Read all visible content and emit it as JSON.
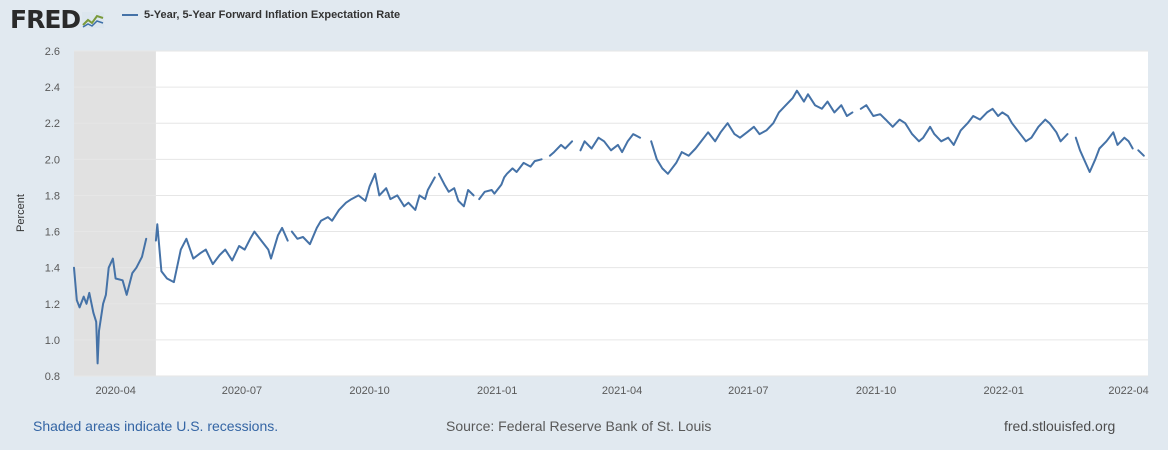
{
  "header": {
    "logo_text": "FRED",
    "legend_label": "5-Year, 5-Year Forward Inflation Expectation Rate",
    "series_color": "#4572a7"
  },
  "footer": {
    "note": "Shaded areas indicate U.S. recessions.",
    "source": "Source: Federal Reserve Bank of St. Louis",
    "site": "fred.stlouisfed.org"
  },
  "chart_data": {
    "type": "line",
    "ylabel": "Percent",
    "ylim": [
      0.8,
      2.6
    ],
    "yticks": [
      "0.8",
      "1.0",
      "1.2",
      "1.4",
      "1.6",
      "1.8",
      "2.0",
      "2.2",
      "2.4",
      "2.6"
    ],
    "xlim": [
      "2020-03-02",
      "2022-04-15"
    ],
    "xticks": [
      {
        "date": "2020-04-01",
        "label": "2020-04"
      },
      {
        "date": "2020-07-01",
        "label": "2020-07"
      },
      {
        "date": "2020-10-01",
        "label": "2020-10"
      },
      {
        "date": "2021-01-01",
        "label": "2021-01"
      },
      {
        "date": "2021-04-01",
        "label": "2021-04"
      },
      {
        "date": "2021-07-01",
        "label": "2021-07"
      },
      {
        "date": "2021-10-01",
        "label": "2021-10"
      },
      {
        "date": "2022-01-01",
        "label": "2022-01"
      },
      {
        "date": "2022-04-01",
        "label": "2022-04"
      }
    ],
    "recession": {
      "start": "2020-03-02",
      "end": "2020-04-30"
    },
    "grid": "horizontal",
    "series": [
      {
        "color": "#4572a7",
        "points": [
          [
            "2020-03-02",
            1.4
          ],
          [
            "2020-03-04",
            1.22
          ],
          [
            "2020-03-06",
            1.18
          ],
          [
            "2020-03-09",
            1.24
          ],
          [
            "2020-03-11",
            1.2
          ],
          [
            "2020-03-13",
            1.26
          ],
          [
            "2020-03-16",
            1.15
          ],
          [
            "2020-03-18",
            1.1
          ],
          [
            "2020-03-19",
            0.87
          ],
          [
            "2020-03-20",
            1.05
          ],
          [
            "2020-03-23",
            1.2
          ],
          [
            "2020-03-25",
            1.25
          ],
          [
            "2020-03-27",
            1.4
          ],
          [
            "2020-03-30",
            1.45
          ],
          [
            "2020-04-01",
            1.34
          ],
          [
            "2020-04-06",
            1.33
          ],
          [
            "2020-04-09",
            1.25
          ],
          [
            "2020-04-13",
            1.37
          ],
          [
            "2020-04-16",
            1.4
          ],
          [
            "2020-04-20",
            1.46
          ],
          [
            "2020-04-23",
            1.56
          ],
          [
            "2020-04-27",
            null
          ],
          [
            "2020-04-30",
            1.55
          ],
          [
            "2020-05-01",
            1.64
          ],
          [
            "2020-05-04",
            1.38
          ],
          [
            "2020-05-08",
            1.34
          ],
          [
            "2020-05-13",
            1.32
          ],
          [
            "2020-05-18",
            1.5
          ],
          [
            "2020-05-22",
            1.56
          ],
          [
            "2020-05-27",
            1.45
          ],
          [
            "2020-06-01",
            1.48
          ],
          [
            "2020-06-05",
            1.5
          ],
          [
            "2020-06-10",
            1.42
          ],
          [
            "2020-06-15",
            1.47
          ],
          [
            "2020-06-19",
            1.5
          ],
          [
            "2020-06-24",
            1.44
          ],
          [
            "2020-06-29",
            1.52
          ],
          [
            "2020-07-03",
            1.5
          ],
          [
            "2020-07-07",
            1.56
          ],
          [
            "2020-07-10",
            1.6
          ],
          [
            "2020-07-15",
            1.55
          ],
          [
            "2020-07-20",
            1.5
          ],
          [
            "2020-07-22",
            1.45
          ],
          [
            "2020-07-27",
            1.58
          ],
          [
            "2020-07-30",
            1.62
          ],
          [
            "2020-08-03",
            1.55
          ],
          [
            "2020-08-04",
            null
          ],
          [
            "2020-08-06",
            1.6
          ],
          [
            "2020-08-10",
            1.56
          ],
          [
            "2020-08-14",
            1.57
          ],
          [
            "2020-08-19",
            1.53
          ],
          [
            "2020-08-24",
            1.62
          ],
          [
            "2020-08-27",
            1.66
          ],
          [
            "2020-09-01",
            1.68
          ],
          [
            "2020-09-04",
            1.66
          ],
          [
            "2020-09-09",
            1.72
          ],
          [
            "2020-09-14",
            1.76
          ],
          [
            "2020-09-18",
            1.78
          ],
          [
            "2020-09-23",
            1.8
          ],
          [
            "2020-09-28",
            1.77
          ],
          [
            "2020-10-01",
            1.85
          ],
          [
            "2020-10-05",
            1.92
          ],
          [
            "2020-10-08",
            1.8
          ],
          [
            "2020-10-13",
            1.84
          ],
          [
            "2020-10-16",
            1.78
          ],
          [
            "2020-10-21",
            1.8
          ],
          [
            "2020-10-26",
            1.74
          ],
          [
            "2020-10-29",
            1.76
          ],
          [
            "2020-11-03",
            1.72
          ],
          [
            "2020-11-06",
            1.8
          ],
          [
            "2020-11-10",
            1.78
          ],
          [
            "2020-11-12",
            1.83
          ],
          [
            "2020-11-17",
            1.9
          ],
          [
            "2020-11-18",
            null
          ],
          [
            "2020-11-20",
            1.92
          ],
          [
            "2020-11-24",
            1.86
          ],
          [
            "2020-11-27",
            1.82
          ],
          [
            "2020-12-01",
            1.84
          ],
          [
            "2020-12-04",
            1.77
          ],
          [
            "2020-12-08",
            1.74
          ],
          [
            "2020-12-11",
            1.83
          ],
          [
            "2020-12-15",
            1.8
          ],
          [
            "2020-12-17",
            null
          ],
          [
            "2020-12-19",
            1.78
          ],
          [
            "2020-12-23",
            1.82
          ],
          [
            "2020-12-28",
            1.83
          ],
          [
            "2020-12-30",
            1.81
          ],
          [
            "2021-01-04",
            1.86
          ],
          [
            "2021-01-06",
            1.9
          ],
          [
            "2021-01-08",
            1.92
          ],
          [
            "2021-01-12",
            1.95
          ],
          [
            "2021-01-15",
            1.93
          ],
          [
            "2021-01-20",
            1.98
          ],
          [
            "2021-01-25",
            1.96
          ],
          [
            "2021-01-28",
            1.99
          ],
          [
            "2021-02-02",
            2.0
          ],
          [
            "2021-02-03",
            null
          ],
          [
            "2021-02-08",
            2.02
          ],
          [
            "2021-02-11",
            2.04
          ],
          [
            "2021-02-16",
            2.08
          ],
          [
            "2021-02-19",
            2.06
          ],
          [
            "2021-02-24",
            2.1
          ],
          [
            "2021-02-26",
            null
          ],
          [
            "2021-03-02",
            2.05
          ],
          [
            "2021-03-05",
            2.1
          ],
          [
            "2021-03-10",
            2.06
          ],
          [
            "2021-03-15",
            2.12
          ],
          [
            "2021-03-19",
            2.1
          ],
          [
            "2021-03-24",
            2.05
          ],
          [
            "2021-03-29",
            2.08
          ],
          [
            "2021-04-01",
            2.04
          ],
          [
            "2021-04-05",
            2.1
          ],
          [
            "2021-04-09",
            2.14
          ],
          [
            "2021-04-14",
            2.12
          ],
          [
            "2021-04-18",
            null
          ],
          [
            "2021-04-22",
            2.1
          ],
          [
            "2021-04-26",
            2.0
          ],
          [
            "2021-04-30",
            1.95
          ],
          [
            "2021-05-04",
            1.92
          ],
          [
            "2021-05-10",
            1.98
          ],
          [
            "2021-05-14",
            2.04
          ],
          [
            "2021-05-19",
            2.02
          ],
          [
            "2021-05-24",
            2.06
          ],
          [
            "2021-05-28",
            2.1
          ],
          [
            "2021-06-02",
            2.15
          ],
          [
            "2021-06-07",
            2.1
          ],
          [
            "2021-06-11",
            2.15
          ],
          [
            "2021-06-16",
            2.2
          ],
          [
            "2021-06-21",
            2.14
          ],
          [
            "2021-06-25",
            2.12
          ],
          [
            "2021-06-30",
            2.15
          ],
          [
            "2021-07-05",
            2.18
          ],
          [
            "2021-07-09",
            2.14
          ],
          [
            "2021-07-14",
            2.16
          ],
          [
            "2021-07-19",
            2.2
          ],
          [
            "2021-07-23",
            2.26
          ],
          [
            "2021-07-28",
            2.3
          ],
          [
            "2021-08-02",
            2.34
          ],
          [
            "2021-08-05",
            2.38
          ],
          [
            "2021-08-10",
            2.32
          ],
          [
            "2021-08-13",
            2.36
          ],
          [
            "2021-08-18",
            2.3
          ],
          [
            "2021-08-23",
            2.28
          ],
          [
            "2021-08-27",
            2.32
          ],
          [
            "2021-09-01",
            2.26
          ],
          [
            "2021-09-06",
            2.3
          ],
          [
            "2021-09-10",
            2.24
          ],
          [
            "2021-09-14",
            2.26
          ],
          [
            "2021-09-16",
            null
          ],
          [
            "2021-09-20",
            2.28
          ],
          [
            "2021-09-24",
            2.3
          ],
          [
            "2021-09-29",
            2.24
          ],
          [
            "2021-10-04",
            2.25
          ],
          [
            "2021-10-08",
            2.22
          ],
          [
            "2021-10-13",
            2.18
          ],
          [
            "2021-10-18",
            2.22
          ],
          [
            "2021-10-22",
            2.2
          ],
          [
            "2021-10-27",
            2.14
          ],
          [
            "2021-11-01",
            2.1
          ],
          [
            "2021-11-04",
            2.12
          ],
          [
            "2021-11-09",
            2.18
          ],
          [
            "2021-11-12",
            2.14
          ],
          [
            "2021-11-17",
            2.1
          ],
          [
            "2021-11-22",
            2.12
          ],
          [
            "2021-11-26",
            2.08
          ],
          [
            "2021-12-01",
            2.16
          ],
          [
            "2021-12-06",
            2.2
          ],
          [
            "2021-12-10",
            2.24
          ],
          [
            "2021-12-15",
            2.22
          ],
          [
            "2021-12-20",
            2.26
          ],
          [
            "2021-12-24",
            2.28
          ],
          [
            "2021-12-28",
            2.24
          ],
          [
            "2021-12-31",
            2.26
          ],
          [
            "2022-01-04",
            2.24
          ],
          [
            "2022-01-07",
            2.2
          ],
          [
            "2022-01-12",
            2.15
          ],
          [
            "2022-01-17",
            2.1
          ],
          [
            "2022-01-21",
            2.12
          ],
          [
            "2022-01-26",
            2.18
          ],
          [
            "2022-01-31",
            2.22
          ],
          [
            "2022-02-03",
            2.2
          ],
          [
            "2022-02-08",
            2.15
          ],
          [
            "2022-02-11",
            2.1
          ],
          [
            "2022-02-16",
            2.14
          ],
          [
            "2022-02-18",
            null
          ],
          [
            "2022-02-22",
            2.12
          ],
          [
            "2022-02-25",
            2.05
          ],
          [
            "2022-03-01",
            1.98
          ],
          [
            "2022-03-04",
            1.93
          ],
          [
            "2022-03-08",
            2.0
          ],
          [
            "2022-03-11",
            2.06
          ],
          [
            "2022-03-16",
            2.1
          ],
          [
            "2022-03-21",
            2.15
          ],
          [
            "2022-03-24",
            2.08
          ],
          [
            "2022-03-29",
            2.12
          ],
          [
            "2022-04-01",
            2.1
          ],
          [
            "2022-04-04",
            2.06
          ],
          [
            "2022-04-06",
            null
          ],
          [
            "2022-04-08",
            2.05
          ],
          [
            "2022-04-12",
            2.02
          ]
        ]
      }
    ]
  }
}
